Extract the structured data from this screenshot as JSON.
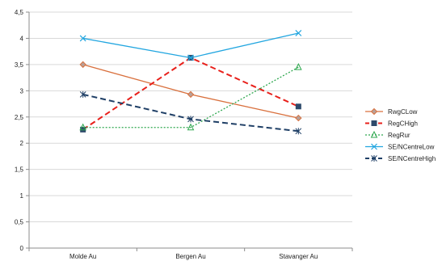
{
  "chart_data": {
    "type": "line",
    "categories": [
      "Molde Au",
      "Bergen Au",
      "Stavanger Au"
    ],
    "ylim": [
      0,
      4.5
    ],
    "ytick_step": 0.5,
    "y_tick_labels": [
      "0",
      "0,5",
      "1",
      "1,5",
      "2",
      "2,5",
      "3",
      "3,5",
      "4",
      "4,5"
    ],
    "grid": true,
    "legend_position": "right",
    "series": [
      {
        "name": "RwgCLow",
        "values": [
          3.5,
          2.93,
          2.48
        ],
        "color": "#d9703d",
        "dash": "solid",
        "marker": "diamond"
      },
      {
        "name": "RegCHigh",
        "values": [
          2.26,
          3.63,
          2.7
        ],
        "color": "#e8201b",
        "marker_color": "#2e4a6b",
        "dash": "dashed",
        "marker": "square"
      },
      {
        "name": "RegRur",
        "values": [
          2.3,
          2.3,
          3.45
        ],
        "color": "#2fa84f",
        "dash": "dotted",
        "marker": "triangle"
      },
      {
        "name": "SE/NCentreLow",
        "values": [
          4.0,
          3.63,
          4.1
        ],
        "color": "#22a6e0",
        "dash": "solid",
        "marker": "x"
      },
      {
        "name": "SE/NCentreHigh",
        "values": [
          2.93,
          2.46,
          2.23
        ],
        "color": "#1f3f66",
        "dash": "dashed",
        "marker": "star"
      }
    ]
  }
}
